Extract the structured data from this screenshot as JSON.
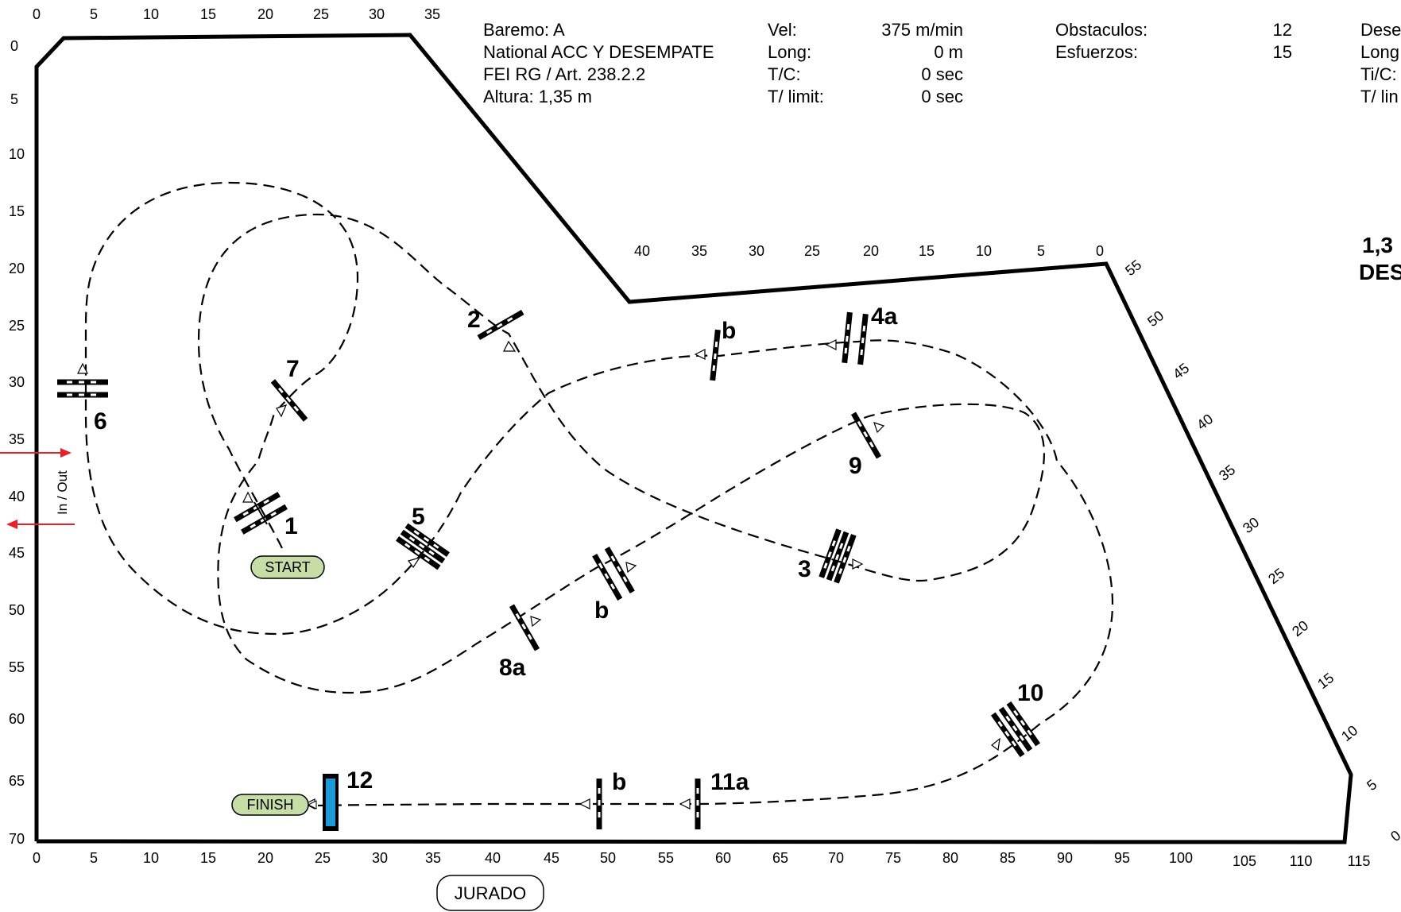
{
  "header": {
    "left_lines": [
      "Baremo: A",
      "National  ACC Y DESEMPATE",
      "FEI RG / Art. 238.2.2",
      "Altura: 1,35 m"
    ],
    "stats_labels": [
      "Vel:",
      "Long:",
      "T/C:",
      "T/ limit:"
    ],
    "stats_values": [
      "375 m/min",
      "0 m",
      "0 sec",
      "0 sec"
    ],
    "count_labels": [
      "Obstaculos:",
      "Esfuerzos:"
    ],
    "count_values": [
      "12",
      "15"
    ],
    "jumpoff_labels": [
      "Dese",
      "Long",
      "Ti/C:",
      "T/ lin"
    ],
    "side_title_lines": [
      "1,3",
      "DES"
    ]
  },
  "axes": {
    "left_ticks": [
      "0",
      "5",
      "10",
      "15",
      "20",
      "25",
      "30",
      "35",
      "40",
      "45",
      "50",
      "55",
      "60",
      "65",
      "70"
    ],
    "top_ticks": [
      "0",
      "5",
      "10",
      "15",
      "20",
      "25",
      "30",
      "35"
    ],
    "bottom_ticks": [
      "0",
      "5",
      "10",
      "15",
      "20",
      "25",
      "30",
      "35",
      "40",
      "45",
      "50",
      "55",
      "60",
      "65",
      "70",
      "75",
      "80",
      "85",
      "90",
      "95",
      "100",
      "105",
      "110",
      "115"
    ],
    "inner_ticks": [
      "40",
      "35",
      "30",
      "25",
      "20",
      "15",
      "10",
      "5",
      "0"
    ],
    "diag_ticks": [
      "55",
      "50",
      "45",
      "40",
      "35",
      "30",
      "25",
      "20",
      "15",
      "10",
      "5",
      "0"
    ]
  },
  "labels": {
    "start": "START",
    "finish": "FINISH",
    "jury": "JURADO",
    "in_out": "In / Out"
  },
  "obstacles": [
    "1",
    "2",
    "3",
    "4a",
    "b",
    "5",
    "6",
    "7",
    "8a",
    "b",
    "9",
    "10",
    "11a",
    "b",
    "12"
  ],
  "colors": {
    "water": "#1a9ad7",
    "label_fill": "#c6dea6",
    "arrow": "#e8202a"
  }
}
